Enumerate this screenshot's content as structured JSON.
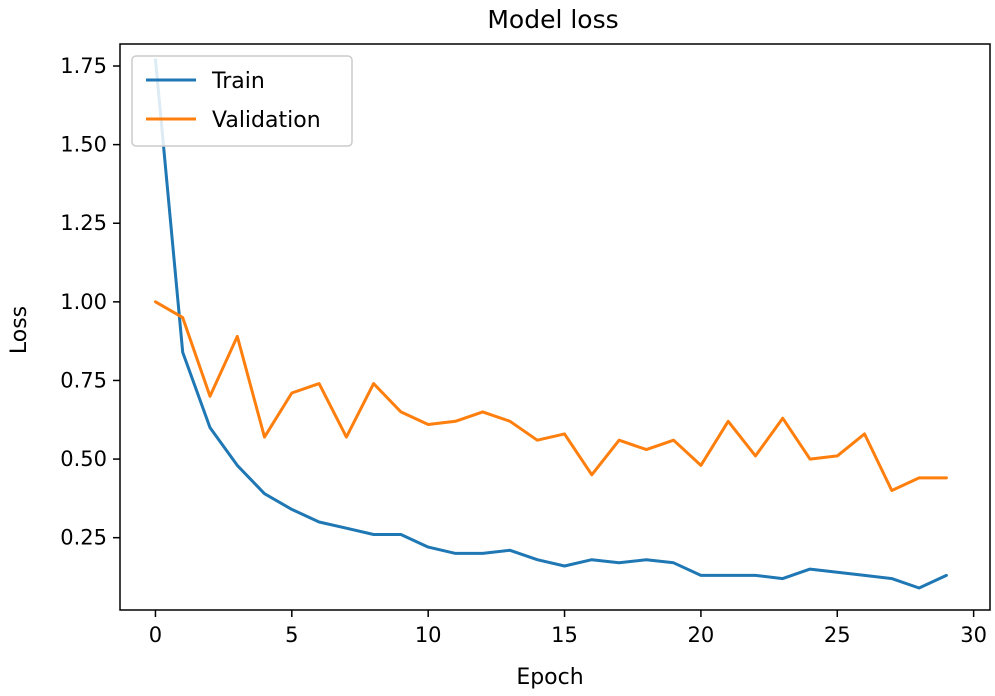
{
  "chart_data": {
    "type": "line",
    "title": "Model loss",
    "xlabel": "Epoch",
    "ylabel": "Loss",
    "xlim": [
      -1.3,
      30.6
    ],
    "ylim": [
      0.02,
      1.82
    ],
    "xticks": [
      0,
      5,
      10,
      15,
      20,
      25,
      30
    ],
    "xtick_labels": [
      "0",
      "5",
      "10",
      "15",
      "20",
      "25",
      "30"
    ],
    "yticks": [
      0.25,
      0.5,
      0.75,
      1.0,
      1.25,
      1.5,
      1.75
    ],
    "ytick_labels": [
      "0.25",
      "0.50",
      "0.75",
      "1.00",
      "1.25",
      "1.50",
      "1.75"
    ],
    "grid": false,
    "legend_position": "upper-left",
    "x": [
      0,
      1,
      2,
      3,
      4,
      5,
      6,
      7,
      8,
      9,
      10,
      11,
      12,
      13,
      14,
      15,
      16,
      17,
      18,
      19,
      20,
      21,
      22,
      23,
      24,
      25,
      26,
      27,
      28,
      29
    ],
    "series": [
      {
        "name": "Train",
        "color": "#1f77b4",
        "values": [
          1.77,
          0.84,
          0.6,
          0.48,
          0.39,
          0.34,
          0.3,
          0.28,
          0.26,
          0.26,
          0.22,
          0.2,
          0.2,
          0.21,
          0.18,
          0.16,
          0.18,
          0.17,
          0.18,
          0.17,
          0.13,
          0.13,
          0.13,
          0.12,
          0.15,
          0.14,
          0.13,
          0.12,
          0.09,
          0.13
        ]
      },
      {
        "name": "Validation",
        "color": "#ff7f0e",
        "values": [
          1.0,
          0.95,
          0.7,
          0.89,
          0.57,
          0.71,
          0.74,
          0.57,
          0.74,
          0.65,
          0.61,
          0.62,
          0.65,
          0.62,
          0.56,
          0.58,
          0.45,
          0.56,
          0.53,
          0.56,
          0.48,
          0.62,
          0.51,
          0.63,
          0.5,
          0.51,
          0.58,
          0.4,
          0.44,
          0.44
        ]
      }
    ]
  }
}
